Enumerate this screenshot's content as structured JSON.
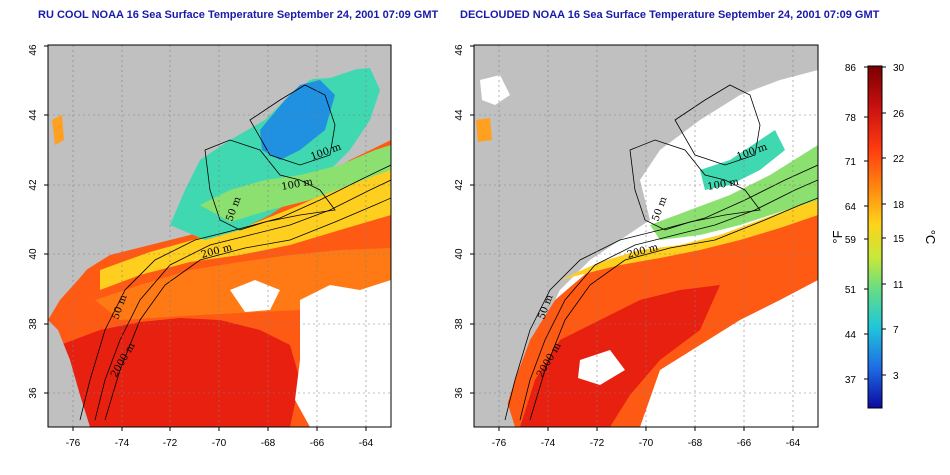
{
  "titles": {
    "left": "RU COOL NOAA 16 Sea Surface Temperature September 24, 2001 07:09 GMT",
    "right": "DECLOUDED NOAA 16 Sea Surface Temperature September 24, 2001 07:09 GMT"
  },
  "map": {
    "lon_ticks": [
      "-76",
      "-74",
      "-72",
      "-70",
      "-68",
      "-66",
      "-64"
    ],
    "lat_ticks": [
      "36",
      "38",
      "40",
      "42",
      "44",
      "46"
    ],
    "lon_range": [
      -77,
      -63
    ],
    "lat_range": [
      35,
      46
    ]
  },
  "contours": {
    "left": [
      "100 m",
      "100 m",
      "50 m",
      "200 m",
      "50 m",
      "2000 m"
    ],
    "right": [
      "100 m",
      "100 m",
      "50 m",
      "200 m",
      "50 m",
      "2000 m"
    ]
  },
  "colorbar": {
    "fahrenheit_ticks": [
      "86",
      "78",
      "71",
      "64",
      "59",
      "51",
      "44",
      "37"
    ],
    "celsius_ticks": [
      "30",
      "26",
      "22",
      "18",
      "15",
      "11",
      "7",
      "3"
    ],
    "unit_f": "°F",
    "unit_c": "°C",
    "colors": [
      "#7a0000",
      "#c81010",
      "#ff3a10",
      "#ff8a10",
      "#ffd21a",
      "#c8e83a",
      "#5fdc8a",
      "#20c8d8",
      "#1e6ee6",
      "#0a0aa0"
    ]
  },
  "land_color": "#c0c0c0"
}
